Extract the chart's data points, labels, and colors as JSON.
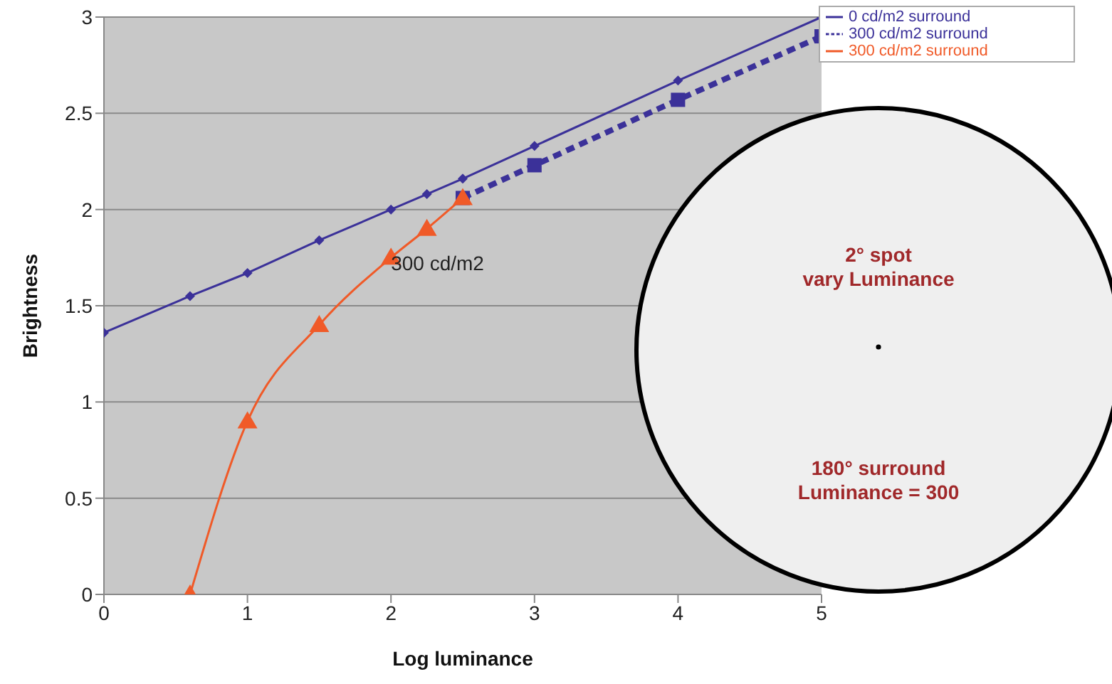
{
  "chart_data": {
    "type": "line",
    "xlabel": "Log luminance",
    "ylabel": "Brightness",
    "xlim": [
      0,
      5
    ],
    "xticks": [
      0,
      1,
      2,
      3,
      4,
      5
    ],
    "ylim": [
      0,
      3
    ],
    "yticks": [
      0,
      0.5,
      1,
      1.5,
      2,
      2.5,
      3
    ],
    "grid": "y",
    "legend": "top right",
    "series": [
      {
        "name": "0 cd/m2 surround",
        "color": "#3b3199",
        "marker": "diamond",
        "line_style": "solid",
        "x": [
          0,
          0.6,
          1,
          1.5,
          2,
          2.25,
          2.5,
          3,
          4,
          5
        ],
        "values": [
          1.36,
          1.55,
          1.67,
          1.84,
          2.0,
          2.08,
          2.16,
          2.33,
          2.67,
          3.0
        ]
      },
      {
        "name": "300 cd/m2 surround",
        "color": "#3b3199",
        "marker": "square",
        "line_style": "dashed",
        "x": [
          2.5,
          3,
          4,
          5
        ],
        "values": [
          2.06,
          2.23,
          2.57,
          2.9
        ]
      },
      {
        "name": "300 cd/m2 surround",
        "color": "#f05a28",
        "marker": "triangle",
        "line_style": "solid",
        "x": [
          0.6,
          1,
          1.5,
          2,
          2.25,
          2.5
        ],
        "values": [
          0,
          0.9,
          1.4,
          1.75,
          1.9,
          2.06
        ]
      }
    ],
    "annotations": [
      {
        "text": "300 cd/m2",
        "x": 2,
        "y": 1.72
      },
      "2° spot",
      "vary Luminance",
      "180° surround",
      "Luminance = 300"
    ]
  }
}
